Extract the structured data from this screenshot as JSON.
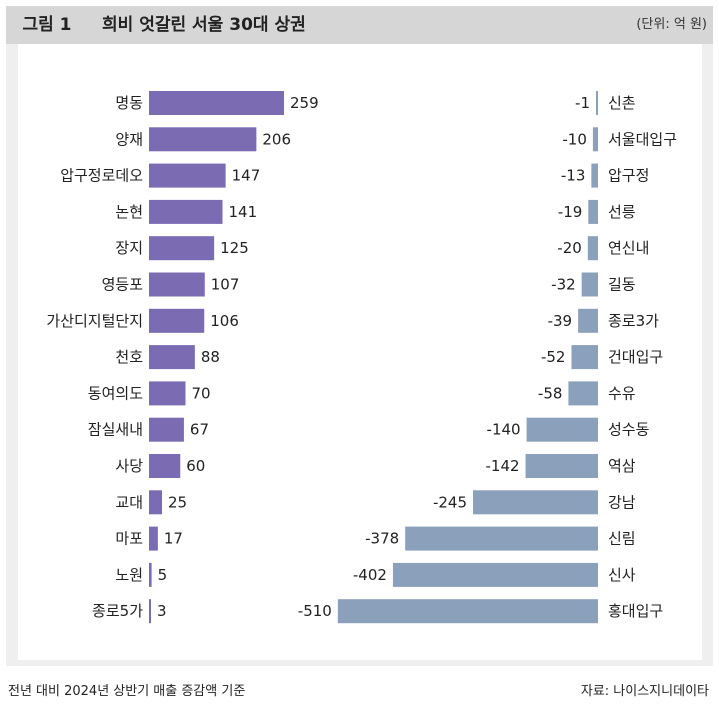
{
  "header": {
    "figure_label": "그림 1",
    "title": "희비 엇갈린 서울 30대 상권",
    "unit": "(단위: 억 원)"
  },
  "footer": {
    "note": "전년 대비 2024년 상반기 매출 증감액 기준",
    "source": "자료: 나이스지니데이타"
  },
  "colors": {
    "positive": "#7b6bb3",
    "negative": "#8ba0ba",
    "panel": "#efefef",
    "header": "#d6d6d6"
  },
  "chart_data": [
    {
      "type": "bar",
      "orientation": "horizontal",
      "title": "",
      "categories": [
        "명동",
        "양재",
        "압구정로데오",
        "논현",
        "장지",
        "영등포",
        "가산디지털단지",
        "천호",
        "동여의도",
        "잠실새내",
        "사당",
        "교대",
        "마포",
        "노원",
        "종로5가"
      ],
      "values": [
        259,
        206,
        147,
        141,
        125,
        107,
        106,
        88,
        70,
        67,
        60,
        25,
        17,
        5,
        3
      ]
    },
    {
      "type": "bar",
      "orientation": "horizontal",
      "title": "",
      "categories": [
        "신촌",
        "서울대입구",
        "압구정",
        "선릉",
        "연신내",
        "길동",
        "종로3가",
        "건대입구",
        "수유",
        "성수동",
        "역삼",
        "강남",
        "신림",
        "신사",
        "홍대입구"
      ],
      "values": [
        -1,
        -10,
        -13,
        -19,
        -20,
        -32,
        -39,
        -52,
        -58,
        -140,
        -142,
        -245,
        -378,
        -402,
        -510
      ]
    }
  ]
}
